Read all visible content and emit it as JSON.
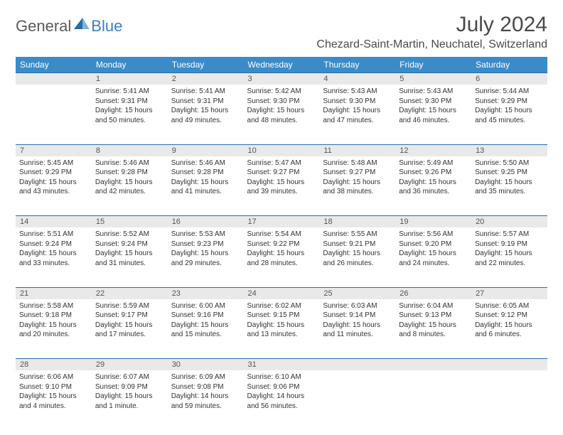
{
  "logo": {
    "part1": "General",
    "part2": "Blue"
  },
  "title": "July 2024",
  "location": "Chezard-Saint-Martin, Neuchatel, Switzerland",
  "colors": {
    "header_bg": "#3b8bc9",
    "header_text": "#ffffff",
    "daynum_bg": "#e9e9e9",
    "rule": "#2d6ca3",
    "logo_gray": "#5a5a5a",
    "logo_blue": "#3b7ec4"
  },
  "weekdays": [
    "Sunday",
    "Monday",
    "Tuesday",
    "Wednesday",
    "Thursday",
    "Friday",
    "Saturday"
  ],
  "weeks": [
    [
      null,
      {
        "d": "1",
        "sr": "5:41 AM",
        "ss": "9:31 PM",
        "dl": "15 hours and 50 minutes."
      },
      {
        "d": "2",
        "sr": "5:41 AM",
        "ss": "9:31 PM",
        "dl": "15 hours and 49 minutes."
      },
      {
        "d": "3",
        "sr": "5:42 AM",
        "ss": "9:30 PM",
        "dl": "15 hours and 48 minutes."
      },
      {
        "d": "4",
        "sr": "5:43 AM",
        "ss": "9:30 PM",
        "dl": "15 hours and 47 minutes."
      },
      {
        "d": "5",
        "sr": "5:43 AM",
        "ss": "9:30 PM",
        "dl": "15 hours and 46 minutes."
      },
      {
        "d": "6",
        "sr": "5:44 AM",
        "ss": "9:29 PM",
        "dl": "15 hours and 45 minutes."
      }
    ],
    [
      {
        "d": "7",
        "sr": "5:45 AM",
        "ss": "9:29 PM",
        "dl": "15 hours and 43 minutes."
      },
      {
        "d": "8",
        "sr": "5:46 AM",
        "ss": "9:28 PM",
        "dl": "15 hours and 42 minutes."
      },
      {
        "d": "9",
        "sr": "5:46 AM",
        "ss": "9:28 PM",
        "dl": "15 hours and 41 minutes."
      },
      {
        "d": "10",
        "sr": "5:47 AM",
        "ss": "9:27 PM",
        "dl": "15 hours and 39 minutes."
      },
      {
        "d": "11",
        "sr": "5:48 AM",
        "ss": "9:27 PM",
        "dl": "15 hours and 38 minutes."
      },
      {
        "d": "12",
        "sr": "5:49 AM",
        "ss": "9:26 PM",
        "dl": "15 hours and 36 minutes."
      },
      {
        "d": "13",
        "sr": "5:50 AM",
        "ss": "9:25 PM",
        "dl": "15 hours and 35 minutes."
      }
    ],
    [
      {
        "d": "14",
        "sr": "5:51 AM",
        "ss": "9:24 PM",
        "dl": "15 hours and 33 minutes."
      },
      {
        "d": "15",
        "sr": "5:52 AM",
        "ss": "9:24 PM",
        "dl": "15 hours and 31 minutes."
      },
      {
        "d": "16",
        "sr": "5:53 AM",
        "ss": "9:23 PM",
        "dl": "15 hours and 29 minutes."
      },
      {
        "d": "17",
        "sr": "5:54 AM",
        "ss": "9:22 PM",
        "dl": "15 hours and 28 minutes."
      },
      {
        "d": "18",
        "sr": "5:55 AM",
        "ss": "9:21 PM",
        "dl": "15 hours and 26 minutes."
      },
      {
        "d": "19",
        "sr": "5:56 AM",
        "ss": "9:20 PM",
        "dl": "15 hours and 24 minutes."
      },
      {
        "d": "20",
        "sr": "5:57 AM",
        "ss": "9:19 PM",
        "dl": "15 hours and 22 minutes."
      }
    ],
    [
      {
        "d": "21",
        "sr": "5:58 AM",
        "ss": "9:18 PM",
        "dl": "15 hours and 20 minutes."
      },
      {
        "d": "22",
        "sr": "5:59 AM",
        "ss": "9:17 PM",
        "dl": "15 hours and 17 minutes."
      },
      {
        "d": "23",
        "sr": "6:00 AM",
        "ss": "9:16 PM",
        "dl": "15 hours and 15 minutes."
      },
      {
        "d": "24",
        "sr": "6:02 AM",
        "ss": "9:15 PM",
        "dl": "15 hours and 13 minutes."
      },
      {
        "d": "25",
        "sr": "6:03 AM",
        "ss": "9:14 PM",
        "dl": "15 hours and 11 minutes."
      },
      {
        "d": "26",
        "sr": "6:04 AM",
        "ss": "9:13 PM",
        "dl": "15 hours and 8 minutes."
      },
      {
        "d": "27",
        "sr": "6:05 AM",
        "ss": "9:12 PM",
        "dl": "15 hours and 6 minutes."
      }
    ],
    [
      {
        "d": "28",
        "sr": "6:06 AM",
        "ss": "9:10 PM",
        "dl": "15 hours and 4 minutes."
      },
      {
        "d": "29",
        "sr": "6:07 AM",
        "ss": "9:09 PM",
        "dl": "15 hours and 1 minute."
      },
      {
        "d": "30",
        "sr": "6:09 AM",
        "ss": "9:08 PM",
        "dl": "14 hours and 59 minutes."
      },
      {
        "d": "31",
        "sr": "6:10 AM",
        "ss": "9:06 PM",
        "dl": "14 hours and 56 minutes."
      },
      null,
      null,
      null
    ]
  ],
  "labels": {
    "sunrise": "Sunrise:",
    "sunset": "Sunset:",
    "daylight": "Daylight:"
  }
}
